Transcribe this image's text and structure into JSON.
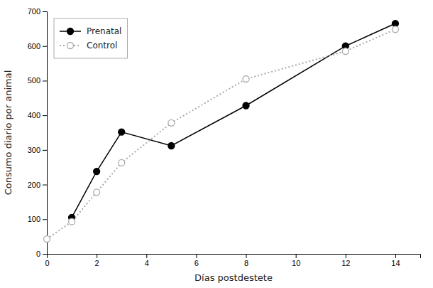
{
  "chart_data": {
    "type": "line",
    "xlabel": "Días postdestete",
    "ylabel": "Consumo diario por animal",
    "xlim": [
      0,
      15
    ],
    "ylim": [
      0,
      700
    ],
    "xticks": [
      0,
      2,
      4,
      6,
      8,
      10,
      12,
      14
    ],
    "yticks": [
      0,
      100,
      200,
      300,
      400,
      500,
      600,
      700
    ],
    "grid": false,
    "legend": "upper left",
    "series": [
      {
        "name": "Prenatal",
        "color": "#000000",
        "marker": "circle",
        "line_style": "solid",
        "x": [
          1,
          2,
          3,
          5,
          8,
          12,
          14
        ],
        "values": [
          105,
          238,
          352,
          312,
          428,
          600,
          665
        ]
      },
      {
        "name": "Control",
        "color": "#aaaaaa",
        "marker": "open-circle",
        "line_style": "dotted",
        "x": [
          0,
          1,
          2,
          3,
          5,
          8,
          12,
          14
        ],
        "values": [
          43,
          93,
          178,
          263,
          378,
          505,
          585,
          648
        ]
      }
    ]
  }
}
